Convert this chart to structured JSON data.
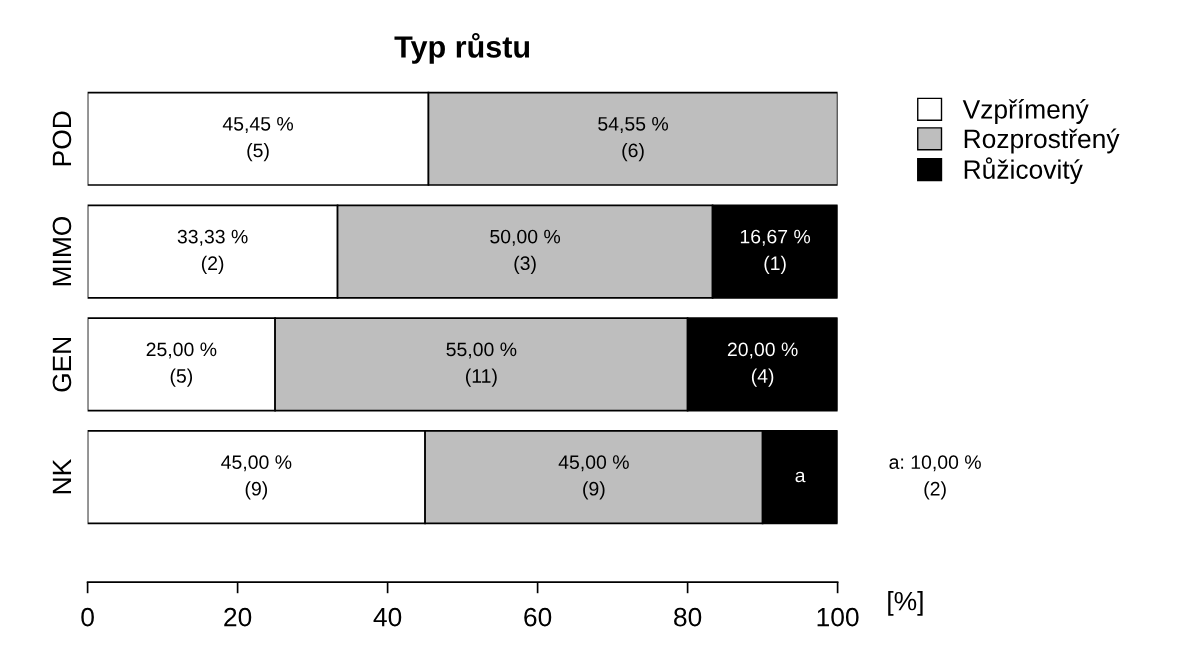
{
  "chart_data": {
    "type": "bar",
    "title": "Typ růstu",
    "orientation": "horizontal",
    "stacked": true,
    "categories": [
      "POD",
      "MIMO",
      "GEN",
      "NK"
    ],
    "series": [
      {
        "name": "Vzpřímený",
        "color": "#ffffff",
        "values": [
          45.45,
          33.33,
          25.0,
          45.0
        ],
        "value_labels": [
          "45,45 %\n(5)",
          "33,33 %\n(2)",
          "25,00 %\n(5)",
          "45,00 %\n(9)"
        ]
      },
      {
        "name": "Rozprostřený",
        "color": "#bebebe",
        "values": [
          54.55,
          50.0,
          55.0,
          45.0
        ],
        "value_labels": [
          "54,55 %\n(6)",
          "50,00 %\n(3)",
          "55,00 %\n(11)",
          "45,00 %\n(9)"
        ]
      },
      {
        "name": "Růžicovitý",
        "color": "#000000",
        "values": [
          null,
          16.67,
          20.0,
          10.0
        ],
        "value_labels": [
          null,
          "16,67 %\n(1)",
          "20,00 %\n(4)",
          "a"
        ]
      }
    ],
    "xlim": [
      0,
      100
    ],
    "xticks": [
      0,
      20,
      40,
      60,
      80,
      100
    ],
    "xlabel": "[%]",
    "annotations": [
      "a: 10,00 %\n(2)"
    ],
    "legend": "top right",
    "grid": false
  }
}
